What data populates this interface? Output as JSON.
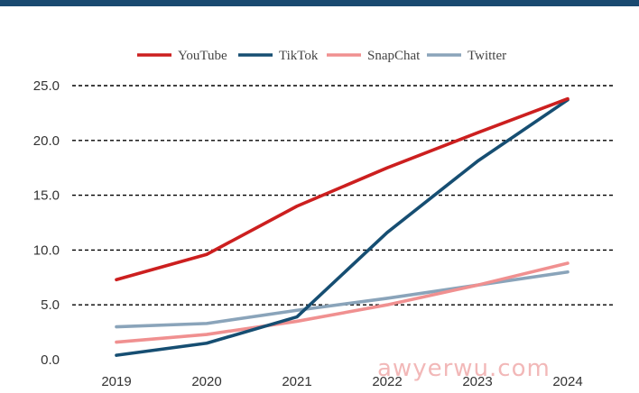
{
  "chart_data": {
    "type": "line",
    "x": [
      "2019",
      "2020",
      "2021",
      "2022",
      "2023",
      "2024"
    ],
    "ylim": [
      0,
      25
    ],
    "y_ticks": [
      "0.0",
      "5.0",
      "10.0",
      "15.0",
      "20.0",
      "25.0"
    ],
    "grid": "horizontal dashed",
    "legend_position": "top-center",
    "series": [
      {
        "name": "YouTube",
        "color": "#cc1f1f",
        "values": [
          7.3,
          9.6,
          14.0,
          17.5,
          20.7,
          23.8
        ]
      },
      {
        "name": "TikTok",
        "color": "#164e72",
        "values": [
          0.4,
          1.5,
          3.9,
          11.6,
          18.1,
          23.7
        ]
      },
      {
        "name": "SnapChat",
        "color": "#f09090",
        "values": [
          1.6,
          2.3,
          3.5,
          5.0,
          6.8,
          8.8
        ]
      },
      {
        "name": "Twitter",
        "color": "#8aa4ba",
        "values": [
          3.0,
          3.3,
          4.5,
          5.6,
          6.8,
          8.0
        ]
      }
    ]
  },
  "watermark": "awyerwu.com"
}
